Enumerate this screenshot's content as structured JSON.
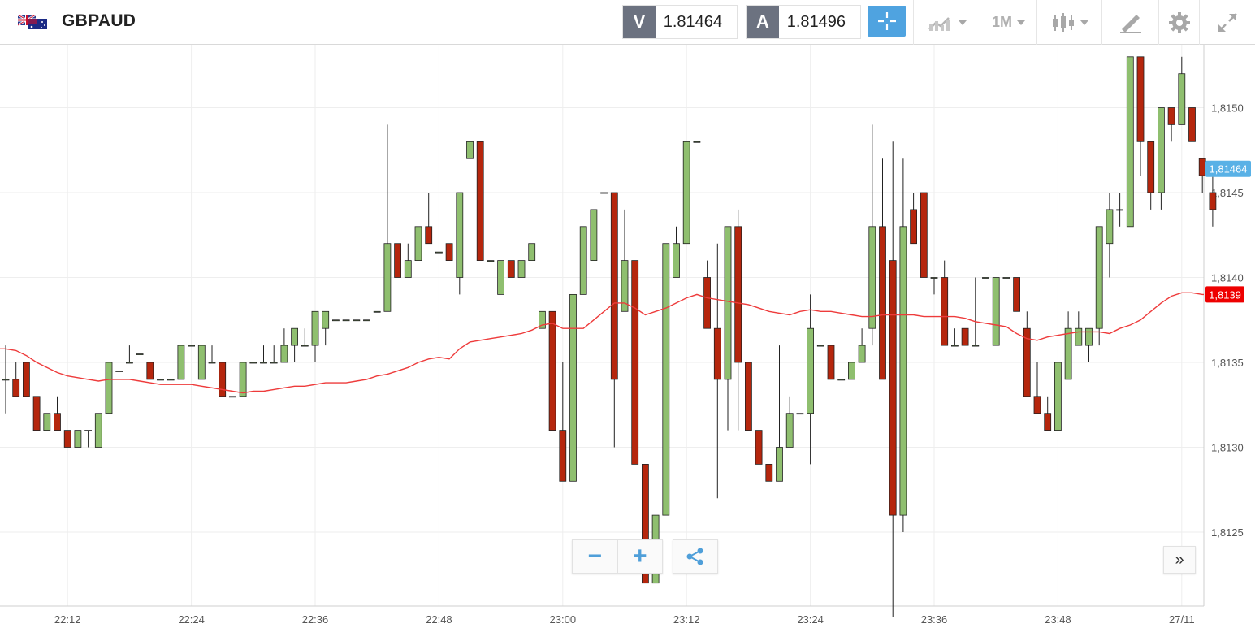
{
  "header": {
    "symbol": "GBPAUD",
    "sell_label": "V",
    "sell_price": "1.81464",
    "buy_label": "A",
    "buy_price": "1.81496",
    "timeframe": "1M",
    "icons": [
      "flag-gb-au-icon",
      "crosshair-icon",
      "chart-type-icon",
      "timeframe-dropdown",
      "candlestick-icon",
      "drawing-tools-icon",
      "gear-icon",
      "expand-icon"
    ]
  },
  "controls": {
    "zoom_out": "−",
    "zoom_in": "+",
    "share_icon": "share-icon",
    "scroll_latest": "»"
  },
  "colors": {
    "up": "#8fbf6f",
    "down": "#b5260d",
    "ma": "#ee3b3b",
    "current_price": "#59b1e6",
    "ma_label": "#ee0000",
    "accent": "#4fa3e0"
  },
  "chart_data": {
    "type": "candlestick",
    "instrument": "GBPAUD",
    "interval": "1M",
    "price_labels": [
      "1,8150",
      "1,8145",
      "1,8140",
      "1,8135",
      "1,8130",
      "1,8125"
    ],
    "time_labels": [
      {
        "label": "22:12",
        "index": 6
      },
      {
        "label": "22:24",
        "index": 18
      },
      {
        "label": "22:36",
        "index": 30
      },
      {
        "label": "22:48",
        "index": 42
      },
      {
        "label": "23:00",
        "index": 54
      },
      {
        "label": "23:12",
        "index": 66
      },
      {
        "label": "23:24",
        "index": 78
      },
      {
        "label": "23:36",
        "index": 90
      },
      {
        "label": "23:48",
        "index": 102
      },
      {
        "label": "27/11",
        "index": 114
      }
    ],
    "ylim": [
      1.812,
      1.8153
    ],
    "current_price_label": "1,81464",
    "current_price": 1.81464,
    "ma_label": "1,8139",
    "ma_value": 1.8139,
    "candles": [
      [
        1.8134,
        1.8134,
        1.8136,
        1.8132
      ],
      [
        1.8134,
        1.8133,
        1.8135,
        1.8133
      ],
      [
        1.8135,
        1.8133,
        1.8135,
        1.8133
      ],
      [
        1.8133,
        1.8131,
        1.8133,
        1.8131
      ],
      [
        1.8131,
        1.8132,
        1.8132,
        1.8131
      ],
      [
        1.8132,
        1.8131,
        1.8133,
        1.8131
      ],
      [
        1.8131,
        1.813,
        1.8131,
        1.813
      ],
      [
        1.813,
        1.8131,
        1.8131,
        1.813
      ],
      [
        1.8131,
        1.8131,
        1.8131,
        1.813
      ],
      [
        1.813,
        1.8132,
        1.8132,
        1.813
      ],
      [
        1.8132,
        1.8135,
        1.8135,
        1.8132
      ],
      [
        1.81345,
        1.81345,
        1.81345,
        1.81345
      ],
      [
        1.8135,
        1.8135,
        1.8136,
        1.8135
      ],
      [
        1.81355,
        1.81355,
        1.81355,
        1.81355
      ],
      [
        1.8135,
        1.8134,
        1.8135,
        1.8134
      ],
      [
        1.8134,
        1.8134,
        1.8134,
        1.8134
      ],
      [
        1.8134,
        1.8134,
        1.8134,
        1.8134
      ],
      [
        1.8134,
        1.8136,
        1.8136,
        1.8134
      ],
      [
        1.8136,
        1.8136,
        1.8136,
        1.8136
      ],
      [
        1.8134,
        1.8136,
        1.8136,
        1.8134
      ],
      [
        1.8135,
        1.8135,
        1.8136,
        1.8135
      ],
      [
        1.8135,
        1.8133,
        1.8135,
        1.8133
      ],
      [
        1.8133,
        1.8133,
        1.8133,
        1.8133
      ],
      [
        1.8133,
        1.8135,
        1.8135,
        1.8133
      ],
      [
        1.8135,
        1.8135,
        1.8135,
        1.8135
      ],
      [
        1.8135,
        1.8135,
        1.8136,
        1.8135
      ],
      [
        1.8135,
        1.8135,
        1.8136,
        1.8135
      ],
      [
        1.8135,
        1.8136,
        1.8137,
        1.8135
      ],
      [
        1.8136,
        1.8137,
        1.8137,
        1.8135
      ],
      [
        1.8136,
        1.8136,
        1.8137,
        1.8136
      ],
      [
        1.8136,
        1.8138,
        1.8138,
        1.8135
      ],
      [
        1.8137,
        1.8138,
        1.8138,
        1.8136
      ],
      [
        1.81375,
        1.81375,
        1.81375,
        1.81375
      ],
      [
        1.81375,
        1.81375,
        1.81375,
        1.81375
      ],
      [
        1.81375,
        1.81375,
        1.81375,
        1.81375
      ],
      [
        1.81375,
        1.81375,
        1.81375,
        1.81375
      ],
      [
        1.8138,
        1.8138,
        1.8138,
        1.8138
      ],
      [
        1.8138,
        1.8142,
        1.8149,
        1.8138
      ],
      [
        1.8142,
        1.814,
        1.8142,
        1.814
      ],
      [
        1.814,
        1.8141,
        1.8142,
        1.814
      ],
      [
        1.8141,
        1.8143,
        1.8143,
        1.8141
      ],
      [
        1.8143,
        1.8142,
        1.8145,
        1.8142
      ],
      [
        1.81415,
        1.81415,
        1.81415,
        1.81415
      ],
      [
        1.8142,
        1.8141,
        1.8142,
        1.8141
      ],
      [
        1.814,
        1.8145,
        1.8145,
        1.8139
      ],
      [
        1.8147,
        1.8148,
        1.8149,
        1.8146
      ],
      [
        1.8148,
        1.8141,
        1.8148,
        1.8141
      ],
      [
        1.8141,
        1.8141,
        1.8141,
        1.8141
      ],
      [
        1.8139,
        1.8141,
        1.8141,
        1.8139
      ],
      [
        1.8141,
        1.814,
        1.8141,
        1.814
      ],
      [
        1.814,
        1.8141,
        1.8141,
        1.814
      ],
      [
        1.8141,
        1.8142,
        1.8142,
        1.8141
      ],
      [
        1.8137,
        1.8138,
        1.8138,
        1.8137
      ],
      [
        1.8138,
        1.8131,
        1.8138,
        1.8131
      ],
      [
        1.8131,
        1.8128,
        1.8135,
        1.8128
      ],
      [
        1.8128,
        1.8139,
        1.8139,
        1.8128
      ],
      [
        1.8139,
        1.8143,
        1.8143,
        1.8139
      ],
      [
        1.8141,
        1.8144,
        1.8144,
        1.8141
      ],
      [
        1.8145,
        1.8145,
        1.8145,
        1.8145
      ],
      [
        1.8145,
        1.8134,
        1.8145,
        1.813
      ],
      [
        1.8138,
        1.8141,
        1.8144,
        1.8138
      ],
      [
        1.8141,
        1.8129,
        1.8141,
        1.8129
      ],
      [
        1.8129,
        1.8122,
        1.8129,
        1.8122
      ],
      [
        1.8122,
        1.8126,
        1.8126,
        1.8122
      ],
      [
        1.8126,
        1.8142,
        1.8142,
        1.8126
      ],
      [
        1.814,
        1.8142,
        1.8143,
        1.814
      ],
      [
        1.8142,
        1.8148,
        1.8148,
        1.8142
      ],
      [
        1.8148,
        1.8148,
        1.8148,
        1.8148
      ],
      [
        1.814,
        1.8137,
        1.8141,
        1.8137
      ],
      [
        1.8137,
        1.8134,
        1.8142,
        1.8127
      ],
      [
        1.8134,
        1.8143,
        1.8143,
        1.8131
      ],
      [
        1.8143,
        1.8135,
        1.8144,
        1.8131
      ],
      [
        1.8135,
        1.8131,
        1.8135,
        1.8131
      ],
      [
        1.8131,
        1.8129,
        1.8131,
        1.8129
      ],
      [
        1.8129,
        1.8128,
        1.8129,
        1.8128
      ],
      [
        1.8128,
        1.813,
        1.8136,
        1.8128
      ],
      [
        1.813,
        1.8132,
        1.8133,
        1.813
      ],
      [
        1.8132,
        1.8132,
        1.8132,
        1.8132
      ],
      [
        1.8132,
        1.8137,
        1.8139,
        1.8129
      ],
      [
        1.8136,
        1.8136,
        1.8136,
        1.8136
      ],
      [
        1.8136,
        1.8134,
        1.8136,
        1.8134
      ],
      [
        1.8134,
        1.8134,
        1.8134,
        1.8134
      ],
      [
        1.8134,
        1.8135,
        1.8135,
        1.8134
      ],
      [
        1.8135,
        1.8136,
        1.8137,
        1.8135
      ],
      [
        1.8137,
        1.8143,
        1.8149,
        1.8136
      ],
      [
        1.8143,
        1.8134,
        1.8147,
        1.8134
      ],
      [
        1.8141,
        1.8126,
        1.8148,
        1.812
      ],
      [
        1.8126,
        1.8143,
        1.8147,
        1.8125
      ],
      [
        1.8144,
        1.8142,
        1.8145,
        1.8142
      ],
      [
        1.8145,
        1.814,
        1.8145,
        1.814
      ],
      [
        1.814,
        1.814,
        1.814,
        1.8139
      ],
      [
        1.814,
        1.8136,
        1.8141,
        1.8136
      ],
      [
        1.8136,
        1.8136,
        1.8137,
        1.8136
      ],
      [
        1.8137,
        1.8136,
        1.8137,
        1.8136
      ],
      [
        1.8136,
        1.8136,
        1.814,
        1.8136
      ],
      [
        1.814,
        1.814,
        1.814,
        1.814
      ],
      [
        1.8136,
        1.814,
        1.814,
        1.8136
      ],
      [
        1.814,
        1.814,
        1.814,
        1.814
      ],
      [
        1.814,
        1.8138,
        1.814,
        1.8138
      ],
      [
        1.8137,
        1.8133,
        1.8138,
        1.8133
      ],
      [
        1.8133,
        1.8132,
        1.8135,
        1.8132
      ],
      [
        1.8132,
        1.8131,
        1.8133,
        1.8131
      ],
      [
        1.8131,
        1.8135,
        1.8135,
        1.8131
      ],
      [
        1.8134,
        1.8137,
        1.8138,
        1.8134
      ],
      [
        1.8136,
        1.8137,
        1.8138,
        1.8136
      ],
      [
        1.8136,
        1.8137,
        1.8137,
        1.8135
      ],
      [
        1.8137,
        1.8143,
        1.8143,
        1.8136
      ],
      [
        1.8142,
        1.8144,
        1.8145,
        1.814
      ],
      [
        1.8144,
        1.8144,
        1.8145,
        1.8143
      ],
      [
        1.8143,
        1.8153,
        1.8153,
        1.8143
      ],
      [
        1.8153,
        1.8148,
        1.8153,
        1.8146
      ],
      [
        1.8148,
        1.8145,
        1.8148,
        1.8144
      ],
      [
        1.8145,
        1.815,
        1.815,
        1.8144
      ],
      [
        1.815,
        1.8149,
        1.815,
        1.8148
      ],
      [
        1.8149,
        1.8152,
        1.8153,
        1.8149
      ],
      [
        1.815,
        1.8148,
        1.8152,
        1.8148
      ],
      [
        1.8147,
        1.8146,
        1.8147,
        1.8145
      ],
      [
        1.8145,
        1.8144,
        1.8146,
        1.8143
      ]
    ],
    "ma": [
      1.81358,
      1.81357,
      1.81354,
      1.8135,
      1.81347,
      1.81344,
      1.81342,
      1.81341,
      1.8134,
      1.81339,
      1.8134,
      1.8134,
      1.8134,
      1.81339,
      1.81338,
      1.81337,
      1.81337,
      1.81337,
      1.81337,
      1.81336,
      1.81335,
      1.81334,
      1.81333,
      1.81332,
      1.81333,
      1.81333,
      1.81334,
      1.81335,
      1.81336,
      1.81336,
      1.81337,
      1.81338,
      1.81338,
      1.81338,
      1.81339,
      1.8134,
      1.81342,
      1.81343,
      1.81345,
      1.81347,
      1.8135,
      1.81352,
      1.81353,
      1.81352,
      1.81358,
      1.81362,
      1.81363,
      1.81364,
      1.81365,
      1.81366,
      1.81367,
      1.81369,
      1.81372,
      1.81373,
      1.8137,
      1.8137,
      1.8137,
      1.81375,
      1.8138,
      1.81385,
      1.81385,
      1.81382,
      1.81378,
      1.8138,
      1.81382,
      1.81385,
      1.81388,
      1.8139,
      1.81388,
      1.81387,
      1.81386,
      1.81385,
      1.81384,
      1.81382,
      1.8138,
      1.81379,
      1.81378,
      1.8138,
      1.81381,
      1.8138,
      1.8138,
      1.81379,
      1.81378,
      1.81377,
      1.81377,
      1.81378,
      1.81378,
      1.81378,
      1.81378,
      1.81377,
      1.81377,
      1.81377,
      1.81377,
      1.81376,
      1.81374,
      1.81373,
      1.81372,
      1.81371,
      1.81367,
      1.81364,
      1.81363,
      1.81365,
      1.81366,
      1.81367,
      1.81368,
      1.81368,
      1.81368,
      1.81367,
      1.8137,
      1.81372,
      1.81375,
      1.8138,
      1.81385,
      1.81389,
      1.81391,
      1.81391,
      1.8139
    ]
  }
}
